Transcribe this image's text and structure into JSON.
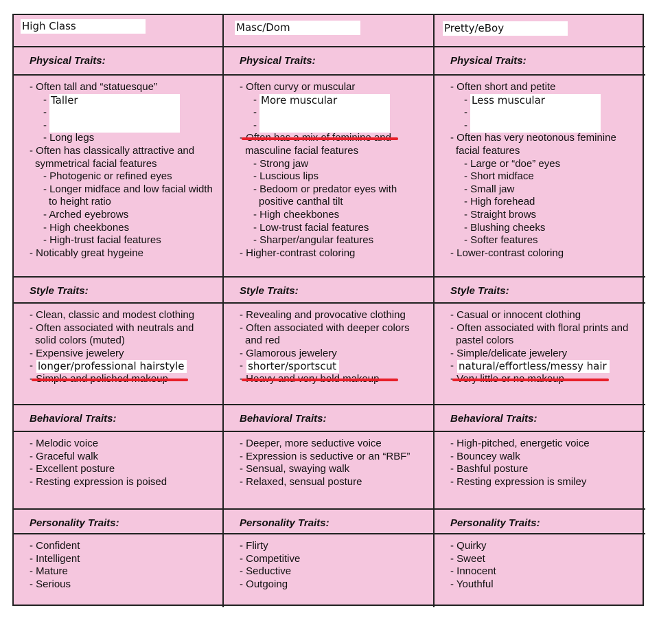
{
  "columns": [
    {
      "header": "High Class",
      "physical": {
        "label": "Physical Traits:",
        "overlay": "Taller",
        "items": [
          [
            "0",
            "- Often tall and “statuesque”"
          ],
          [
            "1",
            "-"
          ],
          [
            "1",
            "-"
          ],
          [
            "1",
            "-"
          ],
          [
            "1",
            "- Long legs"
          ],
          [
            "0",
            "- Often has classically attractive and symmetrical facial features"
          ],
          [
            "1",
            "- Photogenic or refined eyes"
          ],
          [
            "1",
            "- Longer midface and low facial width to height ratio"
          ],
          [
            "1",
            "- Arched eyebrows"
          ],
          [
            "1",
            "- High cheekbones"
          ],
          [
            "1",
            "- High-trust facial features"
          ],
          [
            "0",
            "- Noticably great hygeine"
          ]
        ]
      },
      "style": {
        "label": "Style Traits:",
        "overlay": "longer/professional hairstyle",
        "items": [
          "- Clean, classic and modest clothing",
          "- Often associated with neutrals and solid colors (muted)",
          "- Expensive jewelery",
          "-",
          "- Simple and polished makeup"
        ]
      },
      "behavioral": {
        "label": "Behavioral Traits:",
        "items": [
          "- Melodic voice",
          "- Graceful walk",
          "- Excellent posture",
          "- Resting expression is poised"
        ]
      },
      "personality": {
        "label": "Personality Traits:",
        "items": [
          "- Confident",
          "- Intelligent",
          "- Mature",
          "- Serious"
        ]
      }
    },
    {
      "header": "Masc/Dom",
      "physical": {
        "label": "Physical Traits:",
        "overlay": "More muscular",
        "items": [
          [
            "0",
            "- Often curvy or muscular"
          ],
          [
            "1",
            "-"
          ],
          [
            "1",
            "-"
          ],
          [
            "1",
            "-"
          ],
          [
            "0",
            "- Often has a mix of feminine and masculine facial features"
          ],
          [
            "1",
            "- Strong jaw"
          ],
          [
            "1",
            "- Luscious lips"
          ],
          [
            "1",
            "- Bedoom or predator eyes with positive canthal tilt"
          ],
          [
            "1",
            "- High cheekbones"
          ],
          [
            "1",
            "- Low-trust facial features"
          ],
          [
            "1",
            "- Sharper/angular features"
          ],
          [
            "0",
            "- Higher-contrast coloring"
          ]
        ]
      },
      "style": {
        "label": "Style Traits:",
        "overlay": "shorter/sportscut",
        "items": [
          "- Revealing and provocative clothing",
          "- Often associated with deeper colors and red",
          "- Glamorous jewelery",
          "-",
          "- Heavy and very bold makeup"
        ]
      },
      "behavioral": {
        "label": "Behavioral Traits:",
        "items": [
          "- Deeper, more seductive voice",
          "- Expression is seductive or an “RBF”",
          "- Sensual, swaying walk",
          "- Relaxed, sensual posture"
        ]
      },
      "personality": {
        "label": "Personality Traits:",
        "items": [
          "- Flirty",
          "- Competitive",
          "- Seductive",
          "- Outgoing"
        ]
      }
    },
    {
      "header": "Pretty/eBoy",
      "physical": {
        "label": "Physical Traits:",
        "overlay": "Less muscular",
        "items": [
          [
            "0",
            "- Often short and petite"
          ],
          [
            "1",
            "-"
          ],
          [
            "1",
            "-"
          ],
          [
            "1",
            "-"
          ],
          [
            "0",
            "- Often has very neotonous feminine facial features"
          ],
          [
            "1",
            "- Large or “doe” eyes"
          ],
          [
            "1",
            "- Short midface"
          ],
          [
            "1",
            "- Small jaw"
          ],
          [
            "1",
            "- High forehead"
          ],
          [
            "1",
            "- Straight brows"
          ],
          [
            "1",
            "- Blushing cheeks"
          ],
          [
            "1",
            "- Softer features"
          ],
          [
            "0",
            "- Lower-contrast coloring"
          ]
        ]
      },
      "style": {
        "label": "Style Traits:",
        "overlay": "natural/effortless/messy hair",
        "items": [
          "- Casual or innocent clothing",
          "- Often associated with floral prints and pastel colors",
          "- Simple/delicate jewelery",
          "-",
          "- Very little or no makeup"
        ]
      },
      "behavioral": {
        "label": "Behavioral Traits:",
        "items": [
          "- High-pitched, energetic voice",
          "- Bouncey walk",
          "- Bashful posture",
          "- Resting expression is smiley"
        ]
      },
      "personality": {
        "label": "Personality Traits:",
        "items": [
          "- Quirky",
          "- Sweet",
          "- Innocent",
          "- Youthful"
        ]
      }
    }
  ],
  "colors": {
    "background": "#f5c6de",
    "strike": "#e8202a"
  }
}
